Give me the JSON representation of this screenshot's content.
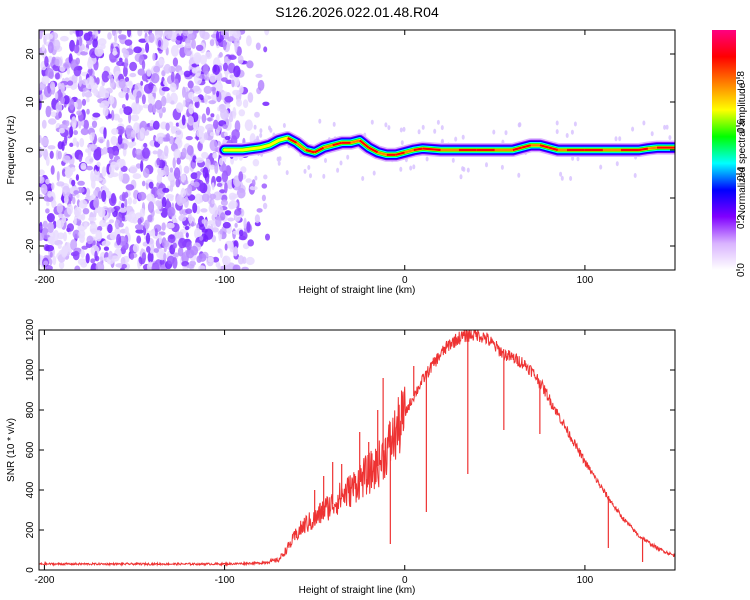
{
  "title": "S126.2026.022.01.48.R04",
  "chart_data": [
    {
      "type": "heatmap",
      "name": "spectrogram",
      "xlabel": "Height of straight line (km)",
      "ylabel": "Frequency (Hz)",
      "xlim": [
        -203,
        150
      ],
      "ylim": [
        -25,
        25
      ],
      "x_ticks": [
        -200,
        -100,
        0,
        100
      ],
      "y_ticks": [
        -20,
        -10,
        0,
        10,
        20
      ],
      "noise_region_x": [
        -203,
        -90
      ],
      "ridge": {
        "x": [
          -100,
          -90,
          -80,
          -75,
          -70,
          -65,
          -60,
          -55,
          -50,
          -45,
          -40,
          -35,
          -30,
          -25,
          -20,
          -15,
          -10,
          -5,
          0,
          5,
          10,
          20,
          30,
          40,
          50,
          60,
          65,
          70,
          75,
          80,
          85,
          90,
          100,
          110,
          120,
          130,
          135,
          140,
          145,
          150
        ],
        "y": [
          0,
          0,
          0.5,
          1,
          2,
          2.5,
          1.5,
          0,
          -0.5,
          0.5,
          1,
          1.5,
          1.5,
          2,
          0.5,
          -0.5,
          -1,
          -1,
          -0.5,
          0,
          0.3,
          0,
          0,
          0,
          0,
          0,
          0.5,
          1,
          1,
          0.5,
          0,
          0,
          0,
          0,
          0,
          0,
          0.3,
          0.5,
          0.5,
          0.5
        ]
      },
      "colorbar": {
        "label": "Normalized spectral amplitude",
        "range": [
          0,
          1
        ],
        "ticks": [
          "0.0",
          "0.2",
          "0.4",
          "0.6",
          "0.8"
        ],
        "colors": [
          "#ffffff",
          "#d9b3ff",
          "#8000ff",
          "#0000ff",
          "#00ffff",
          "#00ff00",
          "#ffff00",
          "#ff8000",
          "#ff0000",
          "#ff0080"
        ]
      }
    },
    {
      "type": "line",
      "name": "snr",
      "xlabel": "Height of straight line (km)",
      "ylabel": "SNR (10 * v/v)",
      "xlim": [
        -203,
        150
      ],
      "ylim": [
        0,
        1200
      ],
      "x_ticks": [
        -200,
        -100,
        0,
        100
      ],
      "y_ticks": [
        0,
        200,
        400,
        600,
        800,
        1000,
        1200
      ],
      "color": "#ee3333",
      "x": [
        -203,
        -150,
        -100,
        -80,
        -70,
        -65,
        -60,
        -55,
        -50,
        -45,
        -40,
        -35,
        -30,
        -25,
        -20,
        -15,
        -10,
        -5,
        0,
        5,
        10,
        15,
        20,
        25,
        30,
        35,
        40,
        45,
        50,
        55,
        60,
        65,
        70,
        75,
        80,
        90,
        100,
        110,
        120,
        130,
        140,
        150
      ],
      "y": [
        30,
        30,
        30,
        35,
        50,
        110,
        180,
        230,
        250,
        300,
        330,
        370,
        400,
        450,
        480,
        520,
        600,
        680,
        780,
        870,
        950,
        1020,
        1080,
        1130,
        1160,
        1175,
        1180,
        1160,
        1120,
        1080,
        1060,
        1040,
        1000,
        940,
        860,
        700,
        540,
        400,
        270,
        170,
        110,
        70
      ],
      "spikes": [
        {
          "x": -60,
          "y": 160
        },
        {
          "x": -50,
          "y": 400
        },
        {
          "x": -45,
          "y": 470
        },
        {
          "x": -40,
          "y": 540
        },
        {
          "x": -35,
          "y": 530
        },
        {
          "x": -25,
          "y": 690
        },
        {
          "x": -20,
          "y": 640
        },
        {
          "x": -15,
          "y": 800
        },
        {
          "x": -12,
          "y": 960
        },
        {
          "x": -8,
          "y": 130
        },
        {
          "x": 5,
          "y": 1020
        },
        {
          "x": 12,
          "y": 290
        },
        {
          "x": 35,
          "y": 480
        },
        {
          "x": 55,
          "y": 700
        },
        {
          "x": 75,
          "y": 680
        },
        {
          "x": 113,
          "y": 110
        },
        {
          "x": 132,
          "y": 40
        }
      ]
    }
  ]
}
